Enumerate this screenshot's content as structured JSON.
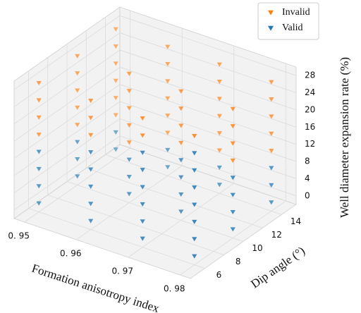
{
  "chart_data": {
    "type": "scatter3d",
    "xlabel": "Formation anisotropy index",
    "ylabel": "Dip angle (°)",
    "zlabel": "Well diameter expansion rate (%)",
    "xlim": [
      0.948,
      0.982
    ],
    "ylim": [
      4.5,
      15.5
    ],
    "zlim": [
      -2,
      30
    ],
    "xticks": [
      {
        "value": 0.95,
        "label": "0. 95"
      },
      {
        "value": 0.96,
        "label": "0. 96"
      },
      {
        "value": 0.97,
        "label": "0. 97"
      },
      {
        "value": 0.98,
        "label": "0. 98"
      }
    ],
    "yticks": [
      6,
      8,
      10,
      12,
      14
    ],
    "zticks": [
      0,
      4,
      8,
      12,
      16,
      20,
      24,
      28
    ],
    "grid": true,
    "legend": "upper right",
    "series": [
      {
        "name": "Invalid",
        "color": "#ff7f0e",
        "x": [
          0.95,
          0.95,
          0.95,
          0.95,
          0.95,
          0.95,
          0.95,
          0.95,
          0.95,
          0.95,
          0.95,
          0.95,
          0.95,
          0.95,
          0.95,
          0.96,
          0.96,
          0.96,
          0.96,
          0.96,
          0.96,
          0.96,
          0.96,
          0.96,
          0.96,
          0.96,
          0.96,
          0.96,
          0.96,
          0.97,
          0.97,
          0.97,
          0.97,
          0.97,
          0.97,
          0.97,
          0.97,
          0.97,
          0.97,
          0.97,
          0.97,
          0.98,
          0.98,
          0.98,
          0.98,
          0.98,
          0.98,
          0.98,
          0.98,
          0.98,
          0.98
        ],
        "y": [
          6,
          6,
          6,
          6,
          10,
          10,
          10,
          10,
          10,
          14,
          14,
          14,
          14,
          14,
          14,
          6,
          6,
          6,
          10,
          10,
          10,
          10,
          10,
          14,
          14,
          14,
          14,
          14,
          14,
          6,
          6,
          10,
          10,
          10,
          10,
          14,
          14,
          14,
          14,
          14,
          14,
          6,
          10,
          10,
          10,
          10,
          14,
          14,
          14,
          14,
          14
        ],
        "z": [
          16,
          20,
          24,
          28,
          12,
          16,
          20,
          24,
          28,
          8,
          12,
          16,
          20,
          24,
          28,
          20,
          24,
          28,
          12,
          16,
          20,
          24,
          28,
          8,
          12,
          16,
          20,
          24,
          28,
          24,
          28,
          16,
          20,
          24,
          28,
          8,
          12,
          16,
          20,
          24,
          28,
          28,
          16,
          20,
          24,
          28,
          12,
          16,
          20,
          24,
          28
        ]
      },
      {
        "name": "Valid",
        "color": "#1f77b4",
        "x": [
          0.95,
          0.95,
          0.95,
          0.95,
          0.95,
          0.95,
          0.95,
          0.95,
          0.95,
          0.96,
          0.96,
          0.96,
          0.96,
          0.96,
          0.96,
          0.96,
          0.96,
          0.96,
          0.96,
          0.97,
          0.97,
          0.97,
          0.97,
          0.97,
          0.97,
          0.97,
          0.97,
          0.97,
          0.97,
          0.97,
          0.97,
          0.98,
          0.98,
          0.98,
          0.98,
          0.98,
          0.98,
          0.98,
          0.98,
          0.98,
          0.98,
          0.98,
          0.98,
          0.98,
          0.98
        ],
        "y": [
          6,
          6,
          6,
          6,
          10,
          10,
          10,
          14,
          14,
          6,
          6,
          6,
          6,
          6,
          10,
          10,
          10,
          14,
          14,
          6,
          6,
          6,
          6,
          6,
          6,
          10,
          10,
          10,
          10,
          14,
          14,
          6,
          6,
          6,
          6,
          6,
          6,
          6,
          10,
          10,
          10,
          10,
          14,
          14,
          14
        ],
        "z": [
          0,
          4,
          8,
          12,
          0,
          4,
          8,
          0,
          4,
          0,
          4,
          8,
          12,
          16,
          0,
          4,
          8,
          0,
          4,
          0,
          4,
          8,
          12,
          16,
          20,
          0,
          4,
          8,
          12,
          0,
          4,
          0,
          4,
          8,
          12,
          16,
          20,
          24,
          0,
          4,
          8,
          12,
          0,
          4,
          8
        ]
      }
    ]
  }
}
